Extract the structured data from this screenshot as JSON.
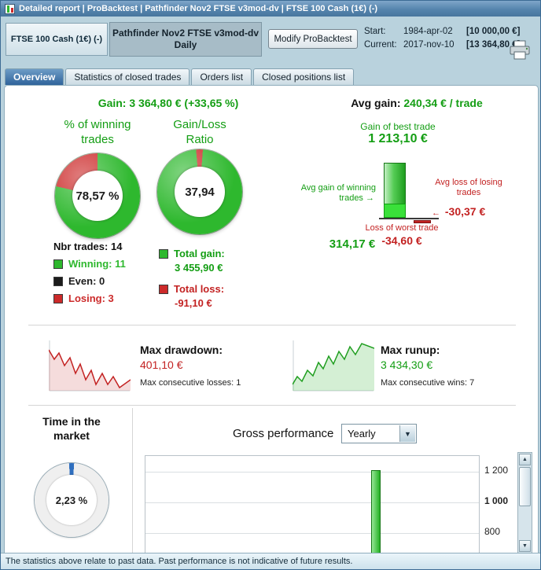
{
  "window": {
    "title": "Detailed report | ProBacktest | Pathfinder Nov2 FTSE v3mod-dv | FTSE 100 Cash (1€) (-)"
  },
  "header": {
    "instrument_button": "FTSE 100 Cash (1€) (-)",
    "system_name": "Pathfinder Nov2 FTSE v3mod-dv",
    "system_timeframe": "Daily",
    "modify_button": "Modify ProBacktest",
    "start_label": "Start:",
    "start_date": "1984-apr-02",
    "start_value": "[10 000,00 €]",
    "current_label": "Current:",
    "current_date": "2017-nov-10",
    "current_value": "[13 364,80 €]"
  },
  "tabs": [
    {
      "label": "Overview",
      "active": true
    },
    {
      "label": "Statistics of closed trades",
      "active": false
    },
    {
      "label": "Orders list",
      "active": false
    },
    {
      "label": "Closed positions list",
      "active": false
    }
  ],
  "overview": {
    "gain_label": "Gain:",
    "gain_value": "3 364,80 € (+33,65 %)",
    "avg_gain_label": "Avg gain:",
    "avg_gain_value": "240,34 € / trade",
    "winning_title": "% of winning trades",
    "winning_pct_value": "78,57 %",
    "ratio_title": "Gain/Loss Ratio",
    "ratio_value": "37,94",
    "nbr_trades": "Nbr trades: 14",
    "legend": [
      {
        "label": "Winning: 11",
        "color": "#2eb82e"
      },
      {
        "label": "Even: 0",
        "color": "#1c1c1c"
      },
      {
        "label": "Losing: 3",
        "color": "#cc2a2a"
      }
    ],
    "total_gain_label": "Total gain:",
    "total_gain_value": "3 455,90 €",
    "total_loss_label": "Total loss:",
    "total_loss_value": "-91,10 €",
    "best_trade_label": "Gain of best trade",
    "best_trade_value": "1 213,10 €",
    "avg_win_label": "Avg gain of winning trades",
    "avg_win_value": "314,17 €",
    "avg_loss_label": "Avg loss of losing trades",
    "avg_loss_value": "-30,37 €",
    "worst_trade_label": "Loss of worst trade",
    "worst_trade_value": "-34,60 €"
  },
  "drawdown": {
    "label": "Max drawdown:",
    "value": "401,10 €",
    "sub": "Max consecutive losses: 1"
  },
  "runup": {
    "label": "Max runup:",
    "value": "3 434,30 €",
    "sub": "Max consecutive wins: 7"
  },
  "bottom": {
    "time_title": "Time in the market",
    "time_value": "2,23 %",
    "gross_label": "Gross performance",
    "period_value": "Yearly"
  },
  "footer": {
    "text": "The statistics above relate to past data. Past performance is not indicative of future results."
  },
  "icons": {
    "arrow_right": "→",
    "arrow_left": "←",
    "dropdown_arrow": "▼",
    "scroll_up_arrow": "▲",
    "scroll_down_arrow": "▼"
  },
  "colors": {
    "green_text": "#149e14",
    "red_text": "#c32222",
    "green_fill": "#2eb82e",
    "red_fill": "#cc2a2a",
    "blue_fill": "#2f6fbf",
    "even_fill": "#1c1c1c"
  },
  "chart_data": {
    "winning_donut": {
      "type": "pie",
      "title": "% of winning trades",
      "percent_winning": 78.57,
      "percent_losing": 21.43,
      "center_label": "78,57 %"
    },
    "gain_loss_donut": {
      "type": "pie",
      "title": "Gain/Loss Ratio",
      "percent_gain": 97.43,
      "percent_loss": 2.57,
      "center_label": "37,94"
    },
    "time_in_market_gauge": {
      "type": "pie",
      "title": "Time in the market",
      "percent_in_market": 2.23,
      "center_label": "2,23 %"
    },
    "best_trade_bar": {
      "type": "bar",
      "best_trade": 1213.1,
      "avg_gain_winning": 314.17,
      "avg_loss_losing": -30.37,
      "worst_trade": -34.6
    },
    "drawdown_sparkline": {
      "type": "line",
      "points": [
        [
          0,
          14
        ],
        [
          7,
          26
        ],
        [
          13,
          18
        ],
        [
          20,
          34
        ],
        [
          27,
          24
        ],
        [
          34,
          44
        ],
        [
          40,
          32
        ],
        [
          47,
          52
        ],
        [
          54,
          40
        ],
        [
          60,
          58
        ],
        [
          68,
          44
        ],
        [
          75,
          58
        ],
        [
          82,
          48
        ],
        [
          90,
          62
        ],
        [
          104,
          52
        ]
      ]
    },
    "runup_sparkline": {
      "type": "line",
      "points": [
        [
          0,
          58
        ],
        [
          6,
          48
        ],
        [
          12,
          54
        ],
        [
          19,
          40
        ],
        [
          26,
          47
        ],
        [
          33,
          30
        ],
        [
          39,
          38
        ],
        [
          46,
          22
        ],
        [
          52,
          32
        ],
        [
          59,
          16
        ],
        [
          66,
          26
        ],
        [
          73,
          10
        ],
        [
          80,
          20
        ],
        [
          88,
          6
        ],
        [
          104,
          12
        ]
      ]
    },
    "gross_performance": {
      "type": "bar",
      "period": "Yearly",
      "ylim": [
        650,
        1300
      ],
      "yticks": [
        {
          "value": 1200,
          "label": "1 200",
          "bold": false
        },
        {
          "value": 1000,
          "label": "1 000",
          "bold": true
        },
        {
          "value": 800,
          "label": "800",
          "bold": false
        }
      ],
      "bars": [
        {
          "approx_value": 1210
        }
      ]
    }
  }
}
